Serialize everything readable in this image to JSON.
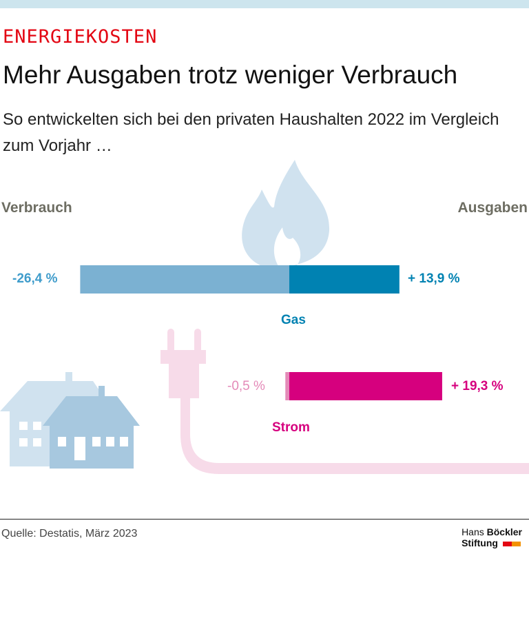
{
  "header": {
    "kicker": "ENERGIEKOSTEN",
    "title": "Mehr Ausgaben trotz weniger Verbrauch",
    "subtitle": "So entwickelten sich bei den privaten Haushalten 2022 im Vergleich zum Vorjahr …"
  },
  "chart_data": {
    "type": "bar",
    "orientation": "horizontal-diverging",
    "left_label": "Verbrauch",
    "right_label": "Ausgaben",
    "unit": "%",
    "categories": [
      "Gas",
      "Strom"
    ],
    "series": [
      {
        "name": "Verbrauch",
        "values": [
          -26.4,
          -0.5
        ],
        "labels": [
          "-26,4 %",
          "-0,5 %"
        ]
      },
      {
        "name": "Ausgaben",
        "values": [
          13.9,
          19.3
        ],
        "labels": [
          "+ 13,9 %",
          "+ 19,3 %"
        ]
      }
    ],
    "colors": {
      "Gas": {
        "verbrauch": "#7bb1d2",
        "ausgaben": "#0082b2",
        "text": "#0082b2",
        "label_neg": "#3f9ccb"
      },
      "Strom": {
        "verbrauch": "#e48ab8",
        "ausgaben": "#d6007e",
        "text": "#d6007e",
        "label_neg": "#e48ab8"
      }
    },
    "icons": [
      "flame-icon",
      "plug-icon",
      "houses-icon"
    ]
  },
  "footer": {
    "source": "Quelle: Destatis, März 2023",
    "logo_line1a": "Hans ",
    "logo_line1b": "Böckler",
    "logo_line2": "Stiftung"
  }
}
